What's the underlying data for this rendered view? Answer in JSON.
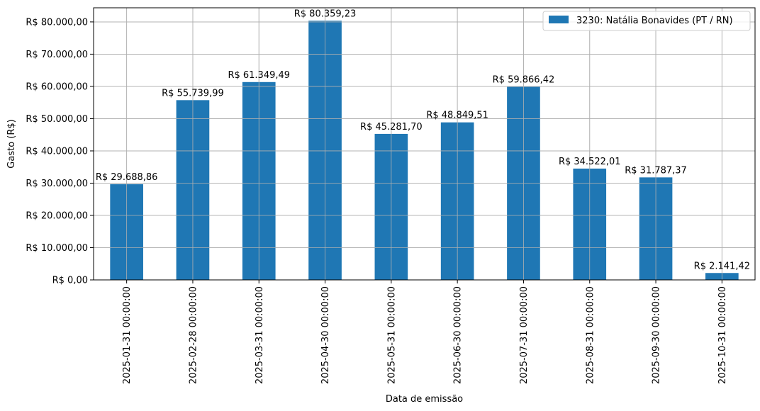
{
  "chart_data": {
    "type": "bar",
    "categories": [
      "2025-01-31 00:00:00",
      "2025-02-28 00:00:00",
      "2025-03-31 00:00:00",
      "2025-04-30 00:00:00",
      "2025-05-31 00:00:00",
      "2025-06-30 00:00:00",
      "2025-07-31 00:00:00",
      "2025-08-31 00:00:00",
      "2025-09-30 00:00:00",
      "2025-10-31 00:00:00"
    ],
    "series": [
      {
        "name": "3230: Natália Bonavides (PT / RN)",
        "color": "#1f77b4",
        "values": [
          29688.86,
          55739.99,
          61349.49,
          80359.23,
          45281.7,
          48849.51,
          59866.42,
          34522.01,
          31787.37,
          2141.42
        ],
        "data_labels": [
          "R$ 29.688,86",
          "R$ 55.739,99",
          "R$ 61.349,49",
          "R$ 80.359,23",
          "R$ 45.281,70",
          "R$ 48.849,51",
          "R$ 59.866,42",
          "R$ 34.522,01",
          "R$ 31.787,37",
          "R$ 2.141,42"
        ]
      }
    ],
    "title": "",
    "xlabel": "Data de emissão",
    "ylabel": "Gasto (R$)",
    "ylim": [
      0,
      84377.19
    ],
    "y_ticks": [
      0,
      10000,
      20000,
      30000,
      40000,
      50000,
      60000,
      70000,
      80000
    ],
    "y_tick_labels": [
      "R$ 0,00",
      "R$ 10.000,00",
      "R$ 20.000,00",
      "R$ 30.000,00",
      "R$ 40.000,00",
      "R$ 50.000,00",
      "R$ 60.000,00",
      "R$ 70.000,00",
      "R$ 80.000,00"
    ],
    "grid": true,
    "legend_position": "top-right"
  }
}
